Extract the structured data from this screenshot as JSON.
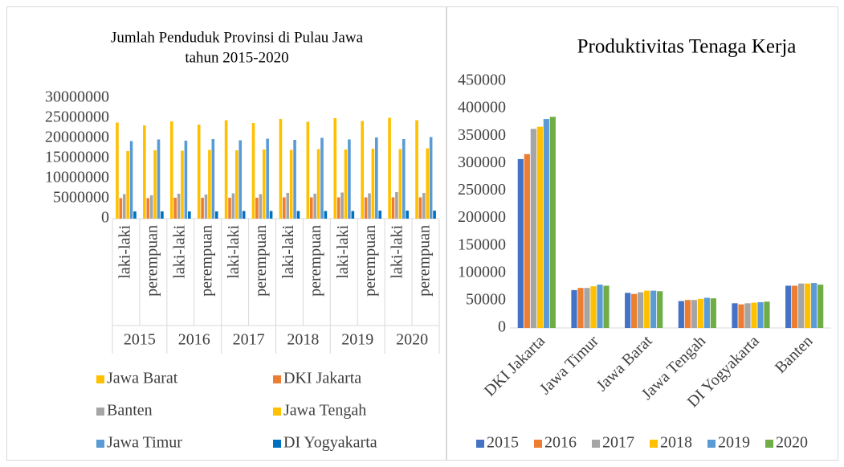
{
  "chart_data": [
    {
      "type": "bar",
      "title": [
        "Jumlah Penduduk Provinsi di Pulau Jawa",
        "tahun 2015-2020"
      ],
      "categories": [
        "laki-laki",
        "perempuan",
        "laki-laki",
        "perempuan",
        "laki-laki",
        "perempuan",
        "laki-laki",
        "perempuan",
        "laki-laki",
        "perempuan",
        "laki-laki",
        "perempuan"
      ],
      "groups": [
        "2015",
        "2016",
        "2017",
        "2018",
        "2019",
        "2020"
      ],
      "series": [
        {
          "name": "Jawa Barat",
          "color": "#ffc000",
          "values": [
            23900000,
            23200000,
            24200000,
            23400000,
            24500000,
            23800000,
            24800000,
            24100000,
            25000000,
            24300000,
            25100000,
            24500000
          ]
        },
        {
          "name": "DKI Jakarta",
          "color": "#ed7d31",
          "values": [
            5100000,
            5100000,
            5200000,
            5200000,
            5200000,
            5200000,
            5300000,
            5300000,
            5300000,
            5300000,
            5300000,
            5300000
          ]
        },
        {
          "name": "Banten",
          "color": "#a5a5a5",
          "values": [
            6100000,
            5800000,
            6200000,
            6000000,
            6300000,
            6100000,
            6400000,
            6200000,
            6500000,
            6300000,
            6600000,
            6400000
          ]
        },
        {
          "name": "Jawa Tengah",
          "color": "#ffc000",
          "values": [
            16800000,
            17000000,
            16900000,
            17100000,
            17000000,
            17200000,
            17100000,
            17300000,
            17200000,
            17400000,
            17300000,
            17500000
          ]
        },
        {
          "name": "Jawa Timur",
          "color": "#5b9bd5",
          "values": [
            19300000,
            19700000,
            19400000,
            19800000,
            19500000,
            19900000,
            19600000,
            20100000,
            19700000,
            20200000,
            19800000,
            20300000
          ]
        },
        {
          "name": "DI Yogyakarta",
          "color": "#0070c0",
          "values": [
            1800000,
            1800000,
            1800000,
            1800000,
            1900000,
            1900000,
            1900000,
            1900000,
            1900000,
            2000000,
            2000000,
            2000000
          ]
        }
      ],
      "ylim": [
        0,
        30000000
      ],
      "yticks": [
        0,
        5000000,
        10000000,
        15000000,
        20000000,
        25000000,
        30000000
      ],
      "grid": false
    },
    {
      "type": "bar",
      "title": "Produktivitas Tenaga Kerja",
      "categories": [
        "DKI Jakarta",
        "Jawa Timur",
        "Jawa Barat",
        "Jawa Tengah",
        "DI Yogyakarta",
        "Banten"
      ],
      "series": [
        {
          "name": "2015",
          "color": "#4472c4",
          "values": [
            308000,
            69000,
            64000,
            49000,
            45000,
            77000
          ]
        },
        {
          "name": "2016",
          "color": "#ed7d31",
          "values": [
            317000,
            73000,
            62000,
            51000,
            43000,
            77000
          ]
        },
        {
          "name": "2017",
          "color": "#a5a5a5",
          "values": [
            363000,
            73000,
            65000,
            51000,
            45000,
            81000
          ]
        },
        {
          "name": "2018",
          "color": "#ffc000",
          "values": [
            367000,
            76000,
            68000,
            53000,
            46000,
            81000
          ]
        },
        {
          "name": "2019",
          "color": "#5b9bd5",
          "values": [
            381000,
            79000,
            68000,
            55000,
            47000,
            82000
          ]
        },
        {
          "name": "2020",
          "color": "#70ad47",
          "values": [
            385000,
            77000,
            67000,
            54000,
            48000,
            79000
          ]
        }
      ],
      "ylim": [
        0,
        450000
      ],
      "yticks": [
        0,
        50000,
        100000,
        150000,
        200000,
        250000,
        300000,
        350000,
        400000,
        450000
      ],
      "grid": false
    }
  ]
}
